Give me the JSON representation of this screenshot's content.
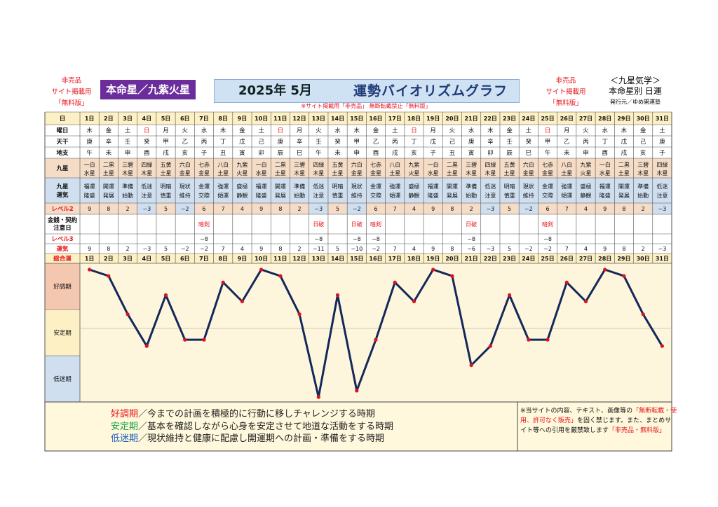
{
  "header": {
    "left_lines": [
      "非売品",
      "サイト掲載用",
      "「無料版」"
    ],
    "honmeisei": "本命星／九紫火星",
    "year_month": "2025年 5月",
    "title": "運勢バイオリズムグラフ",
    "notice": "※サイト掲載用「非売品」 無断転載禁止「無料版」",
    "right_red_lines": [
      "非売品",
      "サイト掲載用",
      "「無料版」"
    ],
    "right_title": "＜九星気学＞",
    "right_sub": "本命星別 日運",
    "publisher": "発行元／ゆめ開運塾"
  },
  "row_labels": {
    "day": "日",
    "weekday": "曜日",
    "tenkan": "天干",
    "chishi": "地支",
    "kyusei": "九星",
    "kyusei_unki": [
      "九星",
      "運気"
    ],
    "level2": "レベル2",
    "kinsen": [
      "金銭・契約",
      "注意日"
    ],
    "level3": "レベル3",
    "unki_total": [
      "運気",
      "総合運"
    ]
  },
  "days": [
    "1日",
    "2日",
    "3日",
    "4日",
    "5日",
    "6日",
    "7日",
    "8日",
    "9日",
    "10日",
    "11日",
    "12日",
    "13日",
    "14日",
    "15日",
    "16日",
    "17日",
    "18日",
    "19日",
    "20日",
    "21日",
    "22日",
    "23日",
    "24日",
    "25日",
    "26日",
    "27日",
    "28日",
    "29日",
    "30日",
    "31日"
  ],
  "weekdays": [
    "木",
    "金",
    "土",
    "日",
    "月",
    "火",
    "水",
    "木",
    "金",
    "土",
    "日",
    "月",
    "火",
    "水",
    "木",
    "金",
    "土",
    "日",
    "月",
    "火",
    "水",
    "木",
    "金",
    "土",
    "日",
    "月",
    "火",
    "水",
    "木",
    "金",
    "土"
  ],
  "weekday_red_index": [
    3,
    10,
    17,
    24
  ],
  "tenkan": [
    "庚",
    "辛",
    "壬",
    "癸",
    "甲",
    "乙",
    "丙",
    "丁",
    "戊",
    "己",
    "庚",
    "辛",
    "壬",
    "癸",
    "甲",
    "乙",
    "丙",
    "丁",
    "戊",
    "己",
    "庚",
    "辛",
    "壬",
    "癸",
    "甲",
    "乙",
    "丙",
    "丁",
    "戊",
    "己",
    "庚"
  ],
  "chishi": [
    "午",
    "未",
    "申",
    "酉",
    "戌",
    "亥",
    "子",
    "丑",
    "寅",
    "卯",
    "辰",
    "巳",
    "午",
    "未",
    "申",
    "酉",
    "戌",
    "亥",
    "子",
    "丑",
    "寅",
    "卯",
    "辰",
    "巳",
    "午",
    "未",
    "申",
    "酉",
    "戌",
    "亥",
    "子"
  ],
  "kyusei": [
    [
      "一白",
      "水星"
    ],
    [
      "二黒",
      "土星"
    ],
    [
      "三碧",
      "木星"
    ],
    [
      "四緑",
      "木星"
    ],
    [
      "五黄",
      "土星"
    ],
    [
      "六白",
      "金星"
    ],
    [
      "七赤",
      "金星"
    ],
    [
      "八白",
      "土星"
    ],
    [
      "九紫",
      "火星"
    ],
    [
      "一白",
      "水星"
    ],
    [
      "二黒",
      "土星"
    ],
    [
      "三碧",
      "木星"
    ],
    [
      "四緑",
      "木星"
    ],
    [
      "五黄",
      "土星"
    ],
    [
      "六白",
      "金星"
    ],
    [
      "七赤",
      "金星"
    ],
    [
      "八白",
      "土星"
    ],
    [
      "九紫",
      "火星"
    ],
    [
      "一白",
      "水星"
    ],
    [
      "二黒",
      "土星"
    ],
    [
      "三碧",
      "木星"
    ],
    [
      "四緑",
      "木星"
    ],
    [
      "五黄",
      "土星"
    ],
    [
      "六白",
      "金星"
    ],
    [
      "七赤",
      "金星"
    ],
    [
      "八白",
      "土星"
    ],
    [
      "九紫",
      "火星"
    ],
    [
      "一白",
      "水星"
    ],
    [
      "二黒",
      "土星"
    ],
    [
      "三碧",
      "木星"
    ],
    [
      "四緑",
      "木星"
    ]
  ],
  "unki": [
    [
      "福運",
      "隆盛"
    ],
    [
      "開運",
      "発展"
    ],
    [
      "準備",
      "始動"
    ],
    [
      "低迷",
      "注意"
    ],
    [
      "明暗",
      "慎重"
    ],
    [
      "現状",
      "維持"
    ],
    [
      "金運",
      "交際"
    ],
    [
      "強運",
      "傾運"
    ],
    [
      "盛極",
      "静観"
    ],
    [
      "福運",
      "隆盛"
    ],
    [
      "開運",
      "発展"
    ],
    [
      "準備",
      "始動"
    ],
    [
      "低迷",
      "注意"
    ],
    [
      "明暗",
      "慎重"
    ],
    [
      "現状",
      "維持"
    ],
    [
      "金運",
      "交際"
    ],
    [
      "強運",
      "傾運"
    ],
    [
      "盛極",
      "静観"
    ],
    [
      "福運",
      "隆盛"
    ],
    [
      "開運",
      "発展"
    ],
    [
      "準備",
      "始動"
    ],
    [
      "低迷",
      "注意"
    ],
    [
      "明暗",
      "慎重"
    ],
    [
      "現状",
      "維持"
    ],
    [
      "金運",
      "交際"
    ],
    [
      "強運",
      "傾運"
    ],
    [
      "盛極",
      "静観"
    ],
    [
      "福運",
      "隆盛"
    ],
    [
      "開運",
      "発展"
    ],
    [
      "準備",
      "始動"
    ],
    [
      "低迷",
      "注意"
    ]
  ],
  "level2": [
    "9",
    "8",
    "2",
    "−3",
    "5",
    "−2",
    "6",
    "7",
    "4",
    "9",
    "8",
    "2",
    "−3",
    "5",
    "−2",
    "6",
    "7",
    "4",
    "9",
    "8",
    "2",
    "−3",
    "5",
    "−2",
    "6",
    "7",
    "4",
    "9",
    "8",
    "2",
    "−3"
  ],
  "kinsen": [
    "",
    "",
    "",
    "",
    "",
    "",
    "暗剣",
    "",
    "",
    "",
    "",
    "",
    "日破",
    "",
    "日破",
    "暗剣",
    "",
    "",
    "",
    "",
    "日破",
    "",
    "",
    "",
    "暗剣",
    "",
    "",
    "",
    "",
    "",
    ""
  ],
  "level3": [
    "",
    "",
    "",
    "",
    "",
    "",
    "−8",
    "",
    "",
    "",
    "",
    "",
    "−8",
    "",
    "−8",
    "−8",
    "",
    "",
    "",
    "",
    "−8",
    "",
    "",
    "",
    "−8",
    "",
    "",
    "",
    "",
    "",
    ""
  ],
  "totals": [
    "9",
    "8",
    "2",
    "−3",
    "5",
    "−2",
    "−2",
    "7",
    "4",
    "9",
    "8",
    "2",
    "−11",
    "5",
    "−10",
    "−2",
    "7",
    "4",
    "9",
    "8",
    "−6",
    "−3",
    "5",
    "−2",
    "−2",
    "7",
    "4",
    "9",
    "8",
    "2",
    "−3"
  ],
  "colors": {
    "header_row": "#fdf0c4",
    "kyusei_fill": "#f5dcc6",
    "unki_fill": "#cfdff0",
    "good_band": "#f4c7b0",
    "stable_band": "#fdf0c4",
    "low_band": "#cfdff0",
    "line": "#14285a",
    "point": "#e0101c",
    "accent_red": "#e8141c"
  },
  "chart_data": {
    "type": "line",
    "categories": [
      "1日",
      "2日",
      "3日",
      "4日",
      "5日",
      "6日",
      "7日",
      "8日",
      "9日",
      "10日",
      "11日",
      "12日",
      "13日",
      "14日",
      "15日",
      "16日",
      "17日",
      "18日",
      "19日",
      "20日",
      "21日",
      "22日",
      "23日",
      "24日",
      "25日",
      "26日",
      "27日",
      "28日",
      "29日",
      "30日",
      "31日"
    ],
    "series": [
      {
        "values": [
          9,
          8,
          2,
          -3,
          5,
          -2,
          -2,
          7,
          4,
          9,
          8,
          2,
          -11,
          5,
          -10,
          -2,
          7,
          4,
          9,
          8,
          -6,
          -3,
          5,
          -2,
          -2,
          7,
          4,
          9,
          8,
          2,
          -3
        ]
      }
    ],
    "bands": [
      "好調期",
      "安定期",
      "低迷期"
    ],
    "ylim": [
      -11,
      9
    ],
    "legend": "none"
  },
  "description": {
    "lines": [
      {
        "term": "好調期",
        "text": "／今までの計画を積極的に行動に移しチャレンジする時期",
        "color": "#e8141c"
      },
      {
        "term": "安定期",
        "text": "／基本を確認しながら心身を安定させて地道な活動をする時期",
        "color": "#1aa34a"
      },
      {
        "term": "低迷期",
        "text": "／現状維持と健康に配慮し開運期への計画・準備をする時期",
        "color": "#1f5fbf"
      }
    ]
  },
  "note": {
    "pre": "※当サイトの内容、テキスト、画像等の",
    "red1": "「無断転載・使用、許可なく販売」",
    "mid": "を固く禁じます。また、まとめサイト等への引用を厳禁致します",
    "red2": "「非売品・無料版」"
  }
}
